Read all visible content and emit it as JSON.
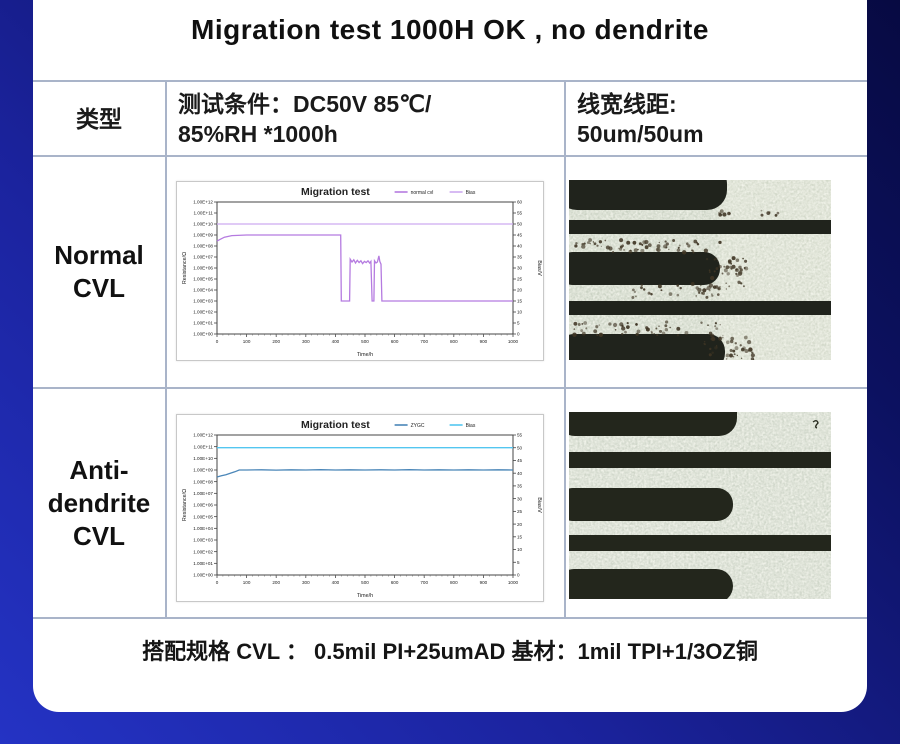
{
  "page": {
    "title": "Migration test 1000H OK , no dendrite",
    "caption": "搭配规格  CVL ： 0.5mil PI+25umAD  基材：1mil TPI+1/3OZ铜"
  },
  "table": {
    "header": {
      "col1": "类型",
      "col2_line1": "测试条件：DC50V 85℃/",
      "col2_line2": "85%RH *1000h",
      "col3_line1": "线宽线距:",
      "col3_line2": "50um/50um"
    },
    "rows": [
      {
        "label_lines": [
          "Normal",
          "CVL"
        ]
      },
      {
        "label_lines": [
          "Anti-",
          "dendrite",
          "CVL"
        ]
      }
    ]
  },
  "chart_data": [
    {
      "type": "line",
      "title": "Migration test",
      "xlabel": "Time/h",
      "ylabel": "Resistance/Ω",
      "ylabel_right": "Bias/V",
      "x_ticks": [
        0,
        100,
        200,
        300,
        400,
        500,
        600,
        700,
        800,
        900,
        1000
      ],
      "y_left_ticks": [
        [
          "1.00E+00",
          0
        ],
        [
          "1.00E+01",
          1
        ],
        [
          "1.00E+02",
          2
        ],
        [
          "1.00E+03",
          3
        ],
        [
          "1.00E+04",
          4
        ],
        [
          "1.00E+05",
          5
        ],
        [
          "1.00E+06",
          6
        ],
        [
          "1.00E+07",
          7
        ],
        [
          "1.00E+08",
          8
        ],
        [
          "1.00E+09",
          9
        ],
        [
          "1.00E+10",
          10
        ],
        [
          "1.00E+11",
          11
        ],
        [
          "1.00E+12",
          12
        ]
      ],
      "y_right_ticks": [
        0,
        5,
        10,
        15,
        20,
        25,
        30,
        35,
        40,
        45,
        50,
        55,
        60
      ],
      "legend": [
        {
          "label": "normal cvl",
          "color": "#b57be0"
        },
        {
          "label": "Bias",
          "color": "#cdaaf0"
        }
      ],
      "series": [
        {
          "name": "normal cvl",
          "color": "#b57be0",
          "axis": "left_log",
          "points": [
            [
              0,
              8.45
            ],
            [
              10,
              8.6
            ],
            [
              25,
              8.8
            ],
            [
              50,
              8.95
            ],
            [
              100,
              9.0
            ],
            [
              200,
              9.0
            ],
            [
              300,
              9.0
            ],
            [
              400,
              9.0
            ],
            [
              418,
              9.0
            ],
            [
              420,
              3.0
            ],
            [
              448,
              3.0
            ],
            [
              450,
              6.8
            ],
            [
              456,
              6.55
            ],
            [
              462,
              6.75
            ],
            [
              468,
              6.45
            ],
            [
              474,
              6.7
            ],
            [
              480,
              6.5
            ],
            [
              486,
              6.65
            ],
            [
              492,
              6.4
            ],
            [
              498,
              6.6
            ],
            [
              504,
              6.5
            ],
            [
              510,
              6.65
            ],
            [
              516,
              6.45
            ],
            [
              520,
              6.6
            ],
            [
              524,
              3.0
            ],
            [
              530,
              3.0
            ],
            [
              532,
              6.65
            ],
            [
              537,
              6.45
            ],
            [
              542,
              6.55
            ],
            [
              547,
              7.1
            ],
            [
              550,
              6.6
            ],
            [
              554,
              6.35
            ],
            [
              557,
              3.0
            ],
            [
              600,
              3.0
            ],
            [
              700,
              3.0
            ],
            [
              800,
              3.0
            ],
            [
              900,
              3.0
            ],
            [
              1000,
              3.0
            ]
          ]
        },
        {
          "name": "Bias",
          "color": "#cdaaf0",
          "axis": "right",
          "points": [
            [
              0,
              50
            ],
            [
              1000,
              50
            ]
          ]
        }
      ]
    },
    {
      "type": "line",
      "title": "Migration test",
      "xlabel": "Time/h",
      "ylabel": "Resistance/Ω",
      "ylabel_right": "Bias/V",
      "x_ticks": [
        0,
        100,
        200,
        300,
        400,
        500,
        600,
        700,
        800,
        900,
        1000
      ],
      "y_left_ticks": [
        [
          "1.00E+00",
          0
        ],
        [
          "1.00E+01",
          1
        ],
        [
          "1.00E+02",
          2
        ],
        [
          "1.00E+03",
          3
        ],
        [
          "1.00E+04",
          4
        ],
        [
          "1.00E+05",
          5
        ],
        [
          "1.00E+06",
          6
        ],
        [
          "1.00E+07",
          7
        ],
        [
          "1.00E+08",
          8
        ],
        [
          "1.00E+09",
          9
        ],
        [
          "1.00E+10",
          10
        ],
        [
          "1.00E+11",
          11
        ],
        [
          "1.00E+12",
          12
        ]
      ],
      "y_right_ticks": [
        0,
        5,
        10,
        15,
        20,
        25,
        30,
        35,
        40,
        45,
        50,
        55
      ],
      "legend": [
        {
          "label": "ZYGC",
          "color": "#4a86b8"
        },
        {
          "label": "Bias",
          "color": "#53c6f0"
        }
      ],
      "series": [
        {
          "name": "ZYGC",
          "color": "#4a86b8",
          "axis": "left_log",
          "points": [
            [
              0,
              8.4
            ],
            [
              15,
              8.5
            ],
            [
              30,
              8.6
            ],
            [
              45,
              8.72
            ],
            [
              60,
              8.85
            ],
            [
              75,
              9.0
            ],
            [
              100,
              9.0
            ],
            [
              150,
              9.02
            ],
            [
              200,
              8.99
            ],
            [
              250,
              9.02
            ],
            [
              300,
              9.0
            ],
            [
              350,
              9.03
            ],
            [
              400,
              9.0
            ],
            [
              450,
              9.02
            ],
            [
              500,
              9.0
            ],
            [
              550,
              9.02
            ],
            [
              600,
              9.0
            ],
            [
              650,
              9.03
            ],
            [
              700,
              9.0
            ],
            [
              750,
              9.02
            ],
            [
              800,
              9.0
            ],
            [
              850,
              9.02
            ],
            [
              900,
              9.0
            ],
            [
              950,
              9.02
            ],
            [
              1000,
              9.0
            ]
          ]
        },
        {
          "name": "Bias",
          "color": "#53c6f0",
          "axis": "right",
          "points": [
            [
              0,
              50
            ],
            [
              1000,
              50
            ]
          ]
        }
      ]
    }
  ],
  "colors": {
    "background_gradient": [
      "#2433c4",
      "#070a42"
    ],
    "card": "#ffffff",
    "table_border": "#a9b4c9",
    "title_text": "#101010",
    "micrograph_substrate": "#c9d1c2",
    "micrograph_trace": "#20231c",
    "dendrite_speckle": "#3f3524"
  }
}
